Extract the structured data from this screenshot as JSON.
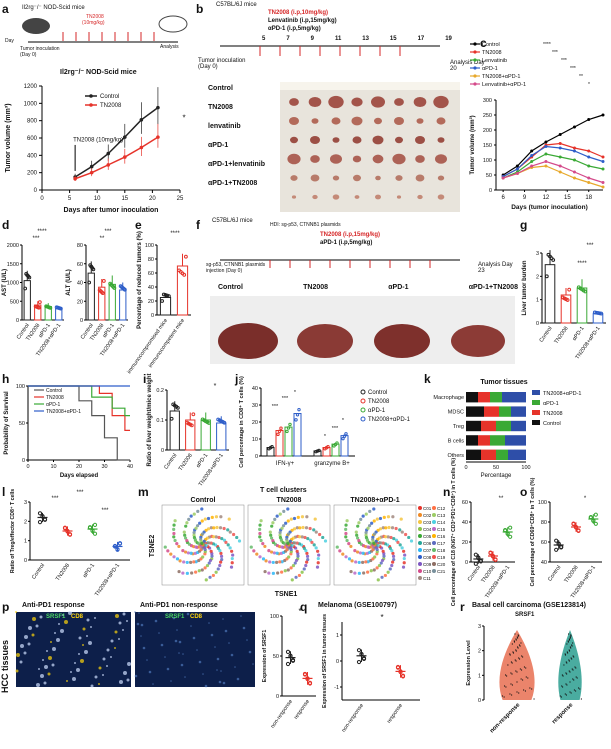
{
  "panels": {
    "a": {
      "label": "a",
      "mouse_top": "Il2rg⁻/⁻ NOD-Scid mice",
      "drug": "TN2008",
      "dose": "(10mg/kg)",
      "day_label": "Day",
      "days": [
        "0",
        "6",
        "8",
        "10",
        "12",
        "14",
        "16",
        "18",
        "20"
      ],
      "tumor_inoculation": "Tumor inoculation (Day 0)",
      "analysis": "Analysis",
      "chart_title": "Il2rg⁻/⁻ NOD-Scid mice",
      "ylabel": "Tumor volume (mm³)",
      "xlabel": "Days after tumor inoculation",
      "arrow_label": "TN2008 (10mg/kg)",
      "legend": [
        "Control",
        "TN2008"
      ],
      "sig": "*"
    },
    "b": {
      "label": "b",
      "mouse": "C57BL/6J mice",
      "drug1": "TN2008 (i.p,10mg/kg)",
      "drug2": "Lenvatinib (i.p,15mg/kg)",
      "drug3": "αPD-1 (i.p,5mg/kg)",
      "days": [
        "5",
        "7",
        "9",
        "11",
        "13",
        "15",
        "17",
        "19"
      ],
      "day_label": "Day",
      "inoc": "Tumor inoculation (Day 0)",
      "analysis": "Analysis Day 20",
      "groups": [
        "Control",
        "TN2008",
        "lenvatinib",
        "αPD-1",
        "αPD-1+lenvatinib",
        "αPD-1+TN2008"
      ]
    },
    "c": {
      "label": "c",
      "legend": [
        "Control",
        "TN2008",
        "Lenvatinib",
        "αPD-1",
        "TN2008+αPD-1",
        "Lenvatinib+αPD-1"
      ],
      "ylabel": "Tumor volume (mm³)",
      "xlabel": "Days (tumor inoculation)",
      "sig": [
        "****",
        "***",
        "***",
        "***",
        "**",
        "*"
      ]
    },
    "d": {
      "label": "d",
      "ylabel1": "AST (U/L)",
      "ylabel2": "ALT (U/L)",
      "groups": [
        "Control",
        "TN2008",
        "αPD-1",
        "TN2008+αPD-1"
      ],
      "sig": [
        "****",
        "***",
        "***",
        "***",
        "**"
      ]
    },
    "e": {
      "label": "e",
      "ylabel": "Percentage of reduced tumors (%)",
      "groups": [
        "immunocompromised mice",
        "immunocompetent mice"
      ],
      "sig": "****"
    },
    "f": {
      "label": "f",
      "mouse": "C57BL/6J mice",
      "plasmid": "HDI: sg-p53, CTNNB1 plasmids",
      "drug1": "TN2008 (i.p,15mg/kg)",
      "drug2": "aPD-1 (i.p,5mg/kg)",
      "days": [
        "5",
        "7",
        "9",
        "11",
        "13",
        "15",
        "17",
        "19",
        "21"
      ],
      "day_label": "Day",
      "inj": "sg-p53, CTNNB1 plasmids injection (Day 0)",
      "analysis": "Analysis Day 23",
      "groups": [
        "Control",
        "TN2008",
        "αPD-1",
        "αPD-1+TN2008"
      ]
    },
    "g": {
      "label": "g",
      "ylabel": "Liver tumor burden",
      "groups": [
        "Control",
        "TN2008",
        "αPD-1",
        "TN2008+αPD-1"
      ],
      "sig": [
        "***",
        "****",
        "***"
      ]
    },
    "h": {
      "label": "h",
      "ylabel": "Probability of Survival",
      "xlabel": "Days elapsed",
      "legend": [
        "Control",
        "TN2008",
        "αPD-1",
        "TN2008+αPD-1"
      ]
    },
    "i": {
      "label": "i",
      "ylabel": "Ratio of liver weight/mice weight",
      "groups": [
        "Control",
        "TN2008",
        "αPD-1",
        "TN2008+αPD-1"
      ],
      "sig": "*"
    },
    "j": {
      "label": "j",
      "ylabel": "Cell percentage in CD8⁺ T cells (%)",
      "xcats": [
        "IFN-γ+",
        "granzyme B+"
      ],
      "legend": [
        "Control",
        "TN2008",
        "αPD-1",
        "TN2008+αPD-1"
      ],
      "sig": [
        "***",
        "***",
        "*",
        "*",
        "***",
        "*"
      ]
    },
    "k": {
      "label": "k",
      "title": "Tumor tissues",
      "rows": [
        "Macrophage",
        "MDSC",
        "Treg",
        "B cells",
        "Others"
      ],
      "xlabel": "Percentage",
      "legend": [
        "TN2008+αPD-1",
        "αPD-1",
        "TN2008",
        "Control"
      ]
    },
    "l": {
      "label": "l",
      "ylabel": "Ratio of Treg/effector CD8⁺ T cells",
      "groups": [
        "Control",
        "TN2008",
        "αPD-1",
        "TN2008+αPD-1"
      ],
      "sig": [
        "***",
        "***",
        "***"
      ]
    },
    "m": {
      "label": "m",
      "title": "T cell clusters",
      "groups": [
        "Control",
        "TN2008",
        "TN2008+αPD-1"
      ],
      "xaxis": "TSNE1",
      "yaxis": "TSNE2",
      "clusters": [
        "C01",
        "C02",
        "C03",
        "C04",
        "C05",
        "C06",
        "C07",
        "C08",
        "C09",
        "C10",
        "C11",
        "C12",
        "C13",
        "C14",
        "C15",
        "C16",
        "C17",
        "C18",
        "C19",
        "C20",
        "C21"
      ]
    },
    "n": {
      "label": "n",
      "ylabel": "Cell percentage of C18 (Ki67⁺ CD3⁺PD1⁺CD8⁺) in T cells (%)",
      "groups": [
        "Control",
        "TN2008",
        "TN2008+αPD-1"
      ],
      "sig": "**"
    },
    "o": {
      "label": "o",
      "ylabel": "Cell percentage of CD69⁺CD8⁺ in T cells (%)",
      "groups": [
        "Control",
        "TN2008",
        "TN2008+αPD-1"
      ],
      "sig": "*"
    },
    "p": {
      "label": "p",
      "title1": "Anti-PD1 response",
      "title2": "Anti-PD1 non-response",
      "stain1": "SRSF1",
      "stain2": "CD8",
      "side_label": "HCC tissues",
      "ylabel": "Expression of SRSF1",
      "xcats": [
        "non-response",
        "response"
      ],
      "sig": "*"
    },
    "q": {
      "label": "q",
      "title": "Melanoma (GSE100797)",
      "ylabel": "Expression of SRSF1 in tumor tissues",
      "xcats": [
        "non-response",
        "response"
      ],
      "sig": "*"
    },
    "r": {
      "label": "r",
      "title": "Basal cell carcinoma (GSE123814)",
      "gene": "SRSF1",
      "ylabel": "Expression Level",
      "xcats": [
        "non-response",
        "response"
      ]
    }
  },
  "chart_data": [
    {
      "type": "line",
      "panel": "a",
      "x": [
        6,
        9,
        12,
        15,
        18,
        21
      ],
      "xlim": [
        0,
        25
      ],
      "ylim": [
        0,
        1200
      ],
      "yticks": [
        0,
        200,
        400,
        600,
        800,
        1000,
        1200
      ],
      "xticks": [
        0,
        5,
        10,
        15,
        20,
        25
      ],
      "series": [
        {
          "name": "Control",
          "values": [
            150,
            270,
            420,
            610,
            810,
            950
          ]
        },
        {
          "name": "TN2008",
          "values": [
            130,
            200,
            290,
            380,
            490,
            610
          ]
        }
      ]
    },
    {
      "type": "line",
      "panel": "c",
      "x": [
        6,
        8,
        10,
        12,
        14,
        16,
        18,
        20
      ],
      "ylim": [
        0,
        300
      ],
      "yticks": [
        0,
        50,
        100,
        150,
        200,
        250,
        300
      ],
      "xticks": [
        6,
        9,
        12,
        15,
        18
      ],
      "series": [
        {
          "name": "Control",
          "values": [
            50,
            80,
            130,
            160,
            185,
            210,
            235,
            250
          ]
        },
        {
          "name": "TN2008",
          "values": [
            45,
            70,
            110,
            150,
            155,
            140,
            130,
            110
          ]
        },
        {
          "name": "Lenvatinib",
          "values": [
            40,
            60,
            95,
            120,
            110,
            100,
            80,
            70
          ]
        },
        {
          "name": "αPD-1",
          "values": [
            45,
            70,
            115,
            145,
            140,
            130,
            110,
            95
          ]
        },
        {
          "name": "TN2008+αPD-1",
          "values": [
            40,
            55,
            75,
            80,
            60,
            40,
            25,
            10
          ]
        },
        {
          "name": "Lenvatinib+αPD-1",
          "values": [
            40,
            55,
            80,
            95,
            80,
            60,
            40,
            25
          ]
        }
      ]
    },
    {
      "type": "bar",
      "panel": "d-AST",
      "categories": [
        "Control",
        "TN2008",
        "αPD-1",
        "TN2008+αPD-1"
      ],
      "values": [
        1050,
        400,
        360,
        300
      ],
      "ylim": [
        0,
        2000
      ]
    },
    {
      "type": "bar",
      "panel": "d-ALT",
      "categories": [
        "Control",
        "TN2008",
        "αPD-1",
        "TN2008+αPD-1"
      ],
      "values": [
        50,
        35,
        38,
        32
      ],
      "ylim": [
        0,
        80
      ]
    },
    {
      "type": "bar",
      "panel": "e",
      "categories": [
        "immunocompromised mice",
        "immunocompetent mice"
      ],
      "values": [
        25,
        70
      ],
      "ylim": [
        0,
        100
      ]
    },
    {
      "type": "bar",
      "panel": "g",
      "categories": [
        "Control",
        "TN2008",
        "αPD-1",
        "TN2008+αPD-1"
      ],
      "values": [
        2.5,
        1.2,
        1.5,
        0.4
      ],
      "ylim": [
        0,
        3
      ]
    },
    {
      "type": "line",
      "panel": "h",
      "xlim": [
        0,
        40
      ],
      "ylim": [
        0,
        100
      ],
      "series": [
        {
          "name": "Control",
          "x": [
            0,
            20,
            25,
            30,
            35
          ],
          "values": [
            100,
            80,
            60,
            30,
            0
          ]
        },
        {
          "name": "TN2008",
          "x": [
            0,
            28,
            33,
            38
          ],
          "values": [
            100,
            90,
            60,
            40
          ]
        },
        {
          "name": "αPD-1",
          "x": [
            0,
            25,
            33,
            38
          ],
          "values": [
            100,
            85,
            70,
            60
          ]
        },
        {
          "name": "TN2008+αPD-1",
          "x": [
            0,
            40
          ],
          "values": [
            100,
            100
          ]
        }
      ]
    },
    {
      "type": "bar",
      "panel": "i",
      "categories": [
        "Control",
        "TN2008",
        "αPD-1",
        "TN2008+αPD-1"
      ],
      "values": [
        0.13,
        0.1,
        0.1,
        0.09
      ],
      "ylim": [
        0,
        0.2
      ]
    },
    {
      "type": "bar",
      "panel": "j",
      "categories": [
        "IFN-γ+",
        "granzyme B+"
      ],
      "series": [
        {
          "name": "Control",
          "values": [
            5,
            3
          ]
        },
        {
          "name": "TN2008",
          "values": [
            15,
            5
          ]
        },
        {
          "name": "αPD-1",
          "values": [
            17,
            7
          ]
        },
        {
          "name": "TN2008+αPD-1",
          "values": [
            25,
            12
          ]
        }
      ],
      "ylim": [
        0,
        40
      ]
    },
    {
      "type": "bar",
      "panel": "k",
      "categories": [
        "Macrophage",
        "MDSC",
        "Treg",
        "B cells",
        "Others"
      ],
      "series": [
        {
          "name": "Control",
          "values": [
            20,
            30,
            25,
            20,
            25
          ]
        },
        {
          "name": "TN2008",
          "values": [
            20,
            25,
            25,
            20,
            25
          ]
        },
        {
          "name": "αPD-1",
          "values": [
            20,
            20,
            25,
            25,
            20
          ]
        },
        {
          "name": "TN2008+αPD-1",
          "values": [
            40,
            25,
            25,
            35,
            30
          ]
        }
      ],
      "xlim": [
        0,
        100
      ]
    },
    {
      "type": "scatter",
      "panel": "l",
      "categories": [
        "Control",
        "TN2008",
        "αPD-1",
        "TN2008+αPD-1"
      ],
      "values": [
        2.2,
        1.5,
        1.6,
        0.7
      ],
      "ylim": [
        0,
        3
      ]
    },
    {
      "type": "scatter",
      "panel": "n",
      "categories": [
        "Control",
        "TN2008",
        "TN2008+αPD-1"
      ],
      "values": [
        3,
        6,
        30
      ],
      "ylim": [
        0,
        60
      ]
    },
    {
      "type": "scatter",
      "panel": "o",
      "categories": [
        "Control",
        "TN2008",
        "TN2008+αPD-1"
      ],
      "values": [
        57,
        75,
        83
      ],
      "ylim": [
        40,
        100
      ]
    },
    {
      "type": "scatter",
      "panel": "p",
      "categories": [
        "non-response",
        "response"
      ],
      "values": [
        48,
        22
      ],
      "ylim": [
        0,
        100
      ]
    },
    {
      "type": "scatter",
      "panel": "q",
      "categories": [
        "non-response",
        "response"
      ],
      "values": [
        0.2,
        -0.4
      ],
      "ylim": [
        -1.5,
        1.5
      ]
    }
  ]
}
